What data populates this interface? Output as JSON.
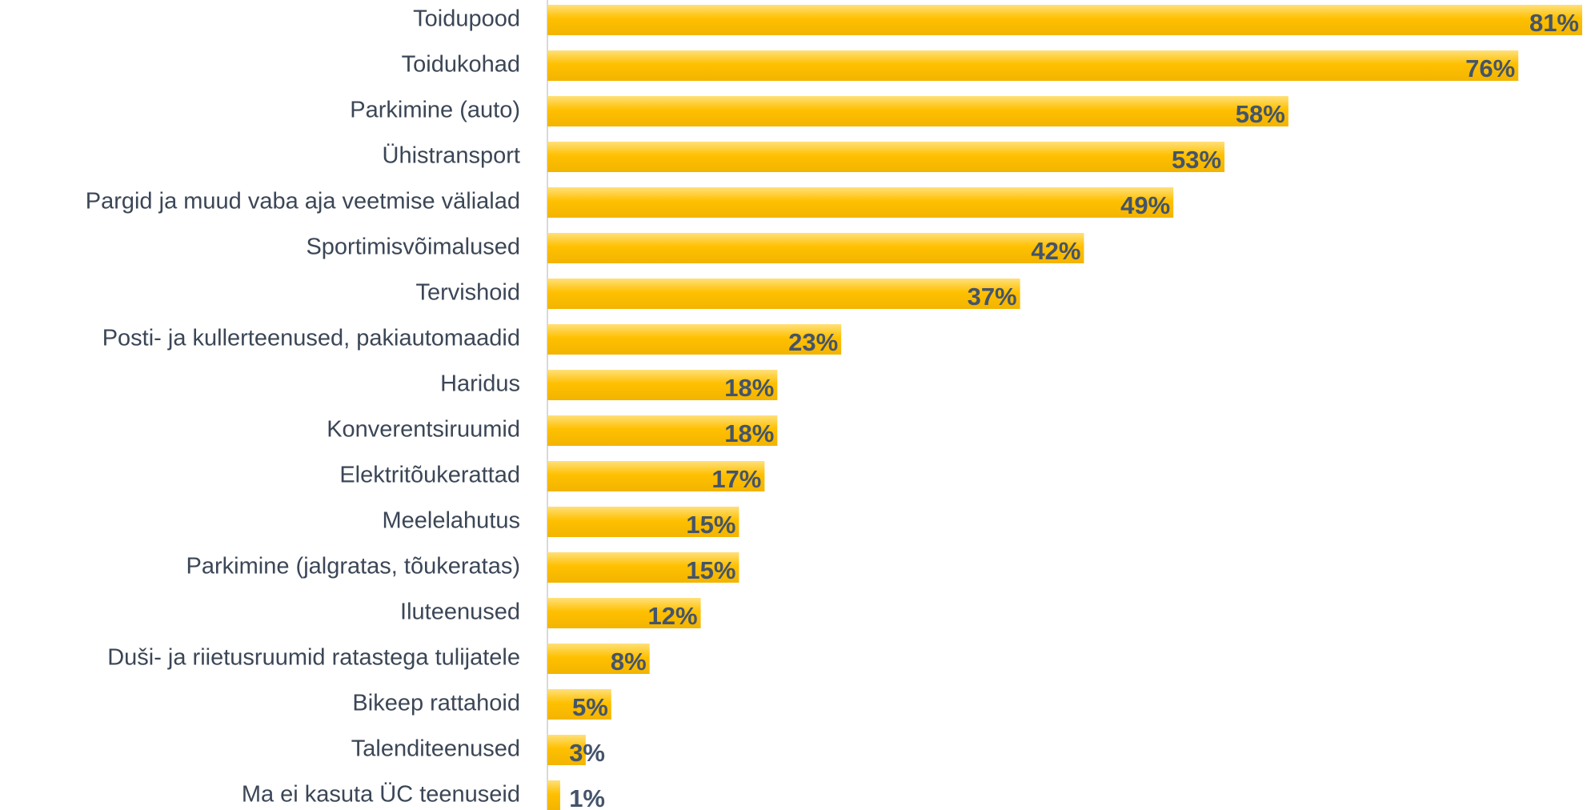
{
  "chart_data": {
    "type": "bar",
    "orientation": "horizontal",
    "categories": [
      "Toidupood",
      "Toidukohad",
      "Parkimine (auto)",
      "Ühistransport",
      "Pargid ja muud vaba aja veetmise välialad",
      "Sportimisvõimalused",
      "Tervishoid",
      "Posti- ja kullerteenused, pakiautomaadid",
      "Haridus",
      "Konverentsiruumid",
      "Elektritõukerattad",
      "Meelelahutus",
      "Parkimine (jalgratas, tõukeratas)",
      "Iluteenused",
      "Duši- ja riietusruumid ratastega tulijatele",
      "Bikeep rattahoid",
      "Talenditeenused",
      "Ma ei kasuta ÜC teenuseid"
    ],
    "values": [
      81,
      76,
      58,
      53,
      49,
      42,
      37,
      23,
      18,
      18,
      17,
      15,
      15,
      12,
      8,
      5,
      3,
      1
    ],
    "value_labels": [
      "81%",
      "76%",
      "58%",
      "53%",
      "49%",
      "42%",
      "37%",
      "23%",
      "18%",
      "18%",
      "17%",
      "15%",
      "15%",
      "12%",
      "8%",
      "5%",
      "3%",
      "1%"
    ],
    "color": "#ffc000"
  }
}
